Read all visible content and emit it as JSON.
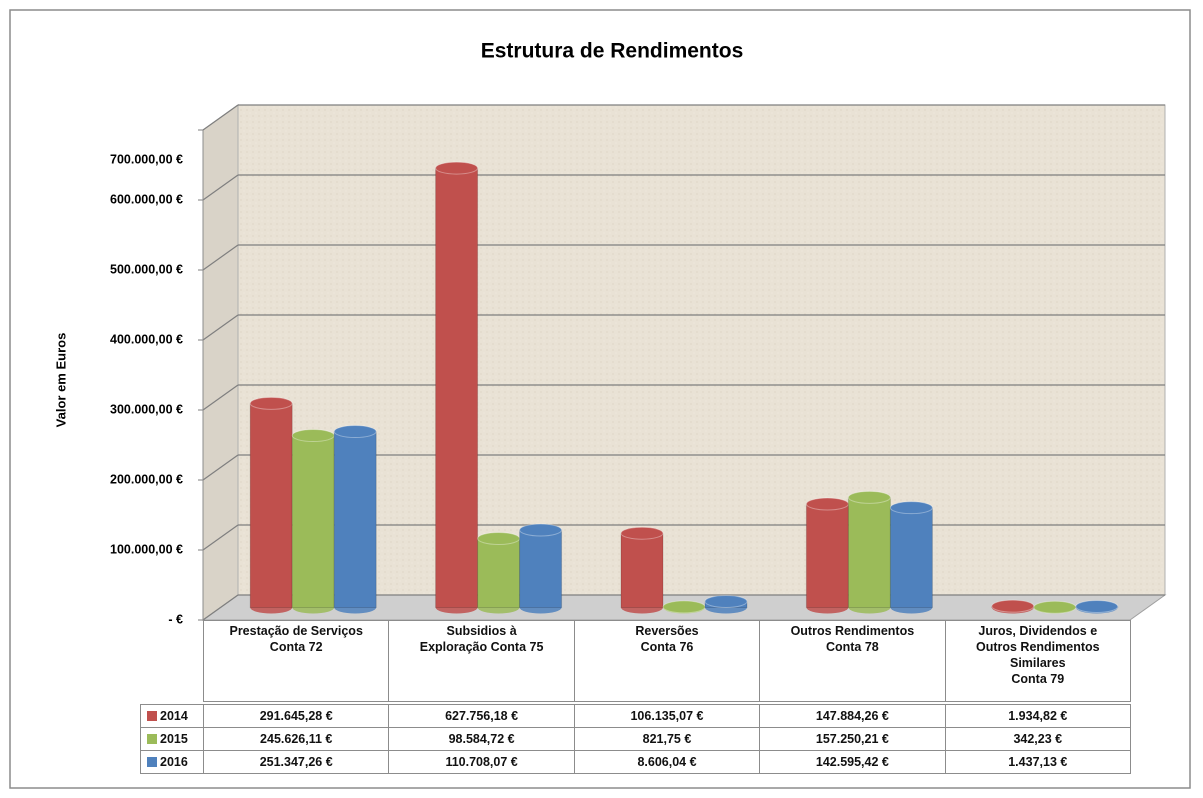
{
  "chart_data": {
    "type": "bar",
    "title": "Estrutura de Rendimentos",
    "y_label": "Valor em Euros",
    "categories": [
      "Prestação de Serviços\nConta 72",
      "Subsidios à\nExploração  Conta 75",
      "Reversões\nConta 76",
      "Outros Rendimentos\nConta 78",
      "Juros, Dividendos e\nOutros Rendimentos\nSimilares\nConta 79"
    ],
    "series": [
      {
        "name": "2014",
        "color": "#c0504d",
        "values": [
          291645.28,
          627756.18,
          106135.07,
          147884.26,
          1934.82
        ],
        "value_labels": [
          "291.645,28 €",
          "627.756,18 €",
          "106.135,07 €",
          "147.884,26 €",
          "1.934,82 €"
        ]
      },
      {
        "name": "2015",
        "color": "#9bbb59",
        "values": [
          245626.11,
          98584.72,
          821.75,
          157250.21,
          342.23
        ],
        "value_labels": [
          "245.626,11 €",
          "98.584,72 €",
          "821,75 €",
          "157.250,21 €",
          "342,23 €"
        ]
      },
      {
        "name": "2016",
        "color": "#4f81bd",
        "values": [
          251347.26,
          110708.07,
          8606.04,
          142595.42,
          1437.13
        ],
        "value_labels": [
          "251.347,26 €",
          "110.708,07 €",
          "8.606,04 €",
          "142.595,42 €",
          "1.437,13 €"
        ]
      }
    ],
    "ylim": [
      0,
      700000
    ],
    "yticks": [
      {
        "value": 0,
        "label": "-  €"
      },
      {
        "value": 100000,
        "label": "100.000,00 €"
      },
      {
        "value": 200000,
        "label": "200.000,00 €"
      },
      {
        "value": 300000,
        "label": "300.000,00 €"
      },
      {
        "value": 400000,
        "label": "400.000,00 €"
      },
      {
        "value": 500000,
        "label": "500.000,00 €"
      },
      {
        "value": 600000,
        "label": "600.000,00 €"
      },
      {
        "value": 700000,
        "label": "700.000,00 €"
      }
    ],
    "grid": true
  }
}
